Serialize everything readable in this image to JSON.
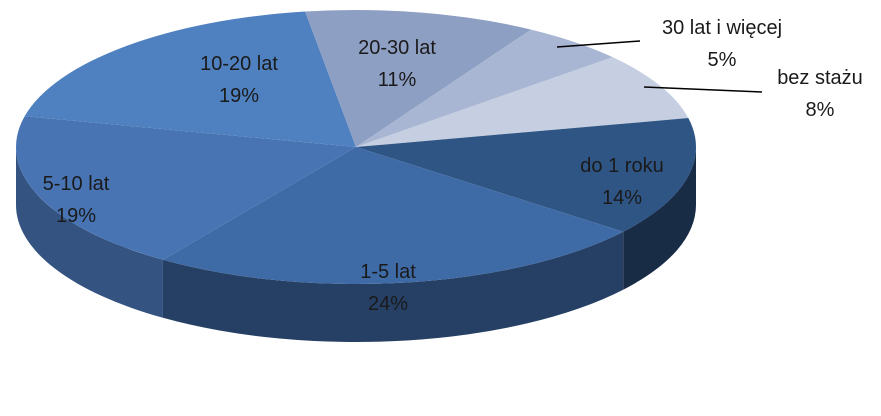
{
  "chart_data": {
    "type": "pie",
    "title": "",
    "slices": [
      {
        "name": "bez stażu",
        "value": 8,
        "label": "8%",
        "color": "#c6cfe1"
      },
      {
        "name": "do 1 roku",
        "value": 14,
        "label": "14%",
        "color": "#2f5585"
      },
      {
        "name": "1-5 lat",
        "value": 24,
        "label": "24%",
        "color": "#3e6aa5"
      },
      {
        "name": "5-10 lat",
        "value": 19,
        "label": "19%",
        "color": "#4874b4"
      },
      {
        "name": "10-20 lat",
        "value": 19,
        "label": "19%",
        "color": "#4f81c0"
      },
      {
        "name": "20-30 lat",
        "value": 11,
        "label": "11%",
        "color": "#8e9fc4"
      },
      {
        "name": "30 lat i więcej",
        "value": 5,
        "label": "5%",
        "color": "#a9b6d3"
      }
    ]
  }
}
